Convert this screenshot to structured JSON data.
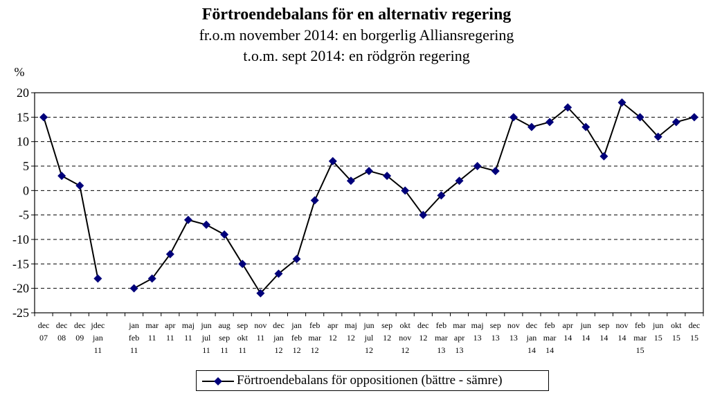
{
  "title": "Förtroendebalans för en alternativ regering",
  "subtitle1": "fr.o.m november 2014: en borgerlig Alliansregering",
  "subtitle2": "t.o.m. sept 2014: en rödgrön regering",
  "chart_data": {
    "type": "line",
    "ylabel": "%",
    "xlabel": "",
    "ylim": [
      -25,
      20
    ],
    "yticks": [
      20,
      15,
      10,
      5,
      0,
      -5,
      -10,
      -15,
      -20,
      -25
    ],
    "grid": "horizontal dashed",
    "legend_position": "bottom-center",
    "series_color": "#00007a",
    "categories": [
      [
        "dec",
        "07"
      ],
      [
        "dec",
        "08"
      ],
      [
        "dec",
        "09"
      ],
      [
        "jdec",
        "jan",
        "11"
      ],
      [
        ""
      ],
      [
        "jan",
        "feb",
        "11"
      ],
      [
        "mar",
        "11"
      ],
      [
        "apr",
        "11"
      ],
      [
        "maj",
        "11"
      ],
      [
        "jun",
        "jul",
        "11"
      ],
      [
        "aug",
        "sep",
        "11"
      ],
      [
        "sep",
        "okt",
        "11"
      ],
      [
        "nov",
        "11"
      ],
      [
        "dec",
        "jan",
        "12"
      ],
      [
        "jan",
        "feb",
        "12"
      ],
      [
        "feb",
        "mar",
        "12"
      ],
      [
        "apr",
        "12"
      ],
      [
        "maj",
        "12"
      ],
      [
        "jun",
        "jul",
        "12"
      ],
      [
        "sep",
        "12"
      ],
      [
        "okt",
        "nov",
        "12"
      ],
      [
        "dec",
        "12"
      ],
      [
        "feb",
        "mar",
        "13"
      ],
      [
        "mar",
        "apr",
        "13"
      ],
      [
        "maj",
        "13"
      ],
      [
        "sep",
        "13"
      ],
      [
        "nov",
        "13"
      ],
      [
        "dec",
        "jan",
        "14"
      ],
      [
        "feb",
        "mar",
        "14"
      ],
      [
        "apr",
        "14"
      ],
      [
        "jun",
        "14"
      ],
      [
        "sep",
        "14"
      ],
      [
        "nov",
        "14"
      ],
      [
        "feb",
        "mar",
        "15"
      ],
      [
        "jun",
        "15"
      ],
      [
        "okt",
        "15"
      ],
      [
        "dec",
        "15"
      ]
    ],
    "series": [
      {
        "name": "Förtroendebalans för oppositionen (bättre - sämre)",
        "values": [
          15,
          3,
          1,
          -18,
          null,
          -20,
          -18,
          -13,
          -6,
          -7,
          -9,
          -15,
          -21,
          -17,
          -14,
          -2,
          6,
          2,
          4,
          3,
          0,
          -5,
          -1,
          2,
          5,
          4,
          15,
          13,
          14,
          17,
          13,
          7,
          18,
          15,
          11,
          14,
          15
        ]
      }
    ]
  }
}
